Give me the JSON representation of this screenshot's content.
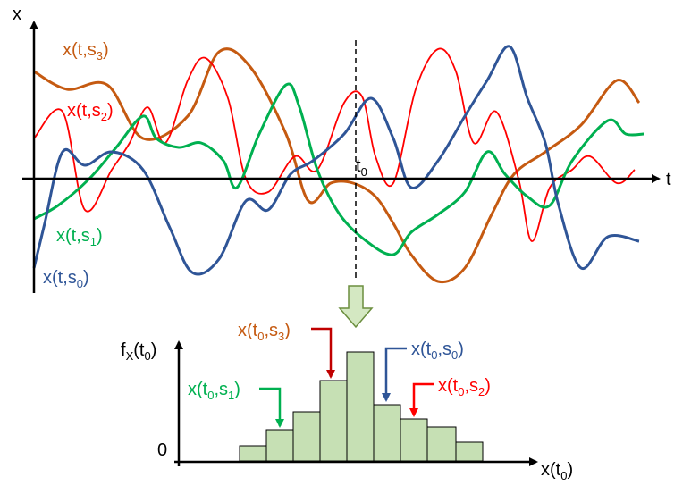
{
  "axes": {
    "x": "x",
    "t": "t",
    "t0": [
      "t",
      "0"
    ]
  },
  "curve_labels": [
    [
      "x(t,s",
      "3",
      ")"
    ],
    [
      "x(t,s",
      "2",
      ")"
    ],
    [
      "x(t,s",
      "1",
      ")"
    ],
    [
      "x(t,s",
      "0",
      ")"
    ]
  ],
  "histogram": {
    "y_label": [
      "f",
      "X",
      "(t",
      "0",
      ")"
    ],
    "zero": "0",
    "x_label": [
      "x(t",
      "0",
      ")"
    ],
    "sample_labels": [
      [
        "x(t",
        "0",
        ",s",
        "3",
        ")"
      ],
      [
        "x(t",
        "0",
        ",s",
        "0",
        ")"
      ],
      [
        "x(t",
        "0",
        ",s",
        "1",
        ")"
      ],
      [
        "x(t",
        "0",
        ",s",
        "2",
        ")"
      ]
    ]
  }
}
